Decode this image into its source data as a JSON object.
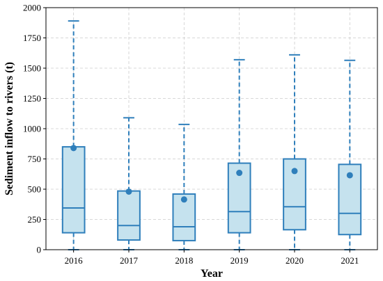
{
  "chart_data": {
    "type": "box",
    "xlabel": "Year",
    "ylabel": "Sediment inflow to rivers (t)",
    "ylim": [
      0,
      2000
    ],
    "yticks": [
      0,
      250,
      500,
      750,
      1000,
      1250,
      1500,
      1750,
      2000
    ],
    "grid": true,
    "colors": {
      "box_fill": "#c5e2ee",
      "box_edge": "#2f7fbb",
      "mean_marker": "#2f7fbb",
      "grid": "#cccccc"
    },
    "categories": [
      "2016",
      "2017",
      "2018",
      "2019",
      "2020",
      "2021"
    ],
    "boxes": [
      {
        "whisker_low": 0,
        "q1": 140,
        "median": 345,
        "q3": 850,
        "whisker_high": 1890,
        "mean": 840
      },
      {
        "whisker_low": 0,
        "q1": 80,
        "median": 200,
        "q3": 485,
        "whisker_high": 1090,
        "mean": 480
      },
      {
        "whisker_low": 0,
        "q1": 75,
        "median": 190,
        "q3": 460,
        "whisker_high": 1035,
        "mean": 415
      },
      {
        "whisker_low": 0,
        "q1": 140,
        "median": 315,
        "q3": 715,
        "whisker_high": 1570,
        "mean": 635
      },
      {
        "whisker_low": 0,
        "q1": 165,
        "median": 355,
        "q3": 750,
        "whisker_high": 1610,
        "mean": 650
      },
      {
        "whisker_low": 0,
        "q1": 125,
        "median": 300,
        "q3": 705,
        "whisker_high": 1565,
        "mean": 615
      }
    ]
  }
}
